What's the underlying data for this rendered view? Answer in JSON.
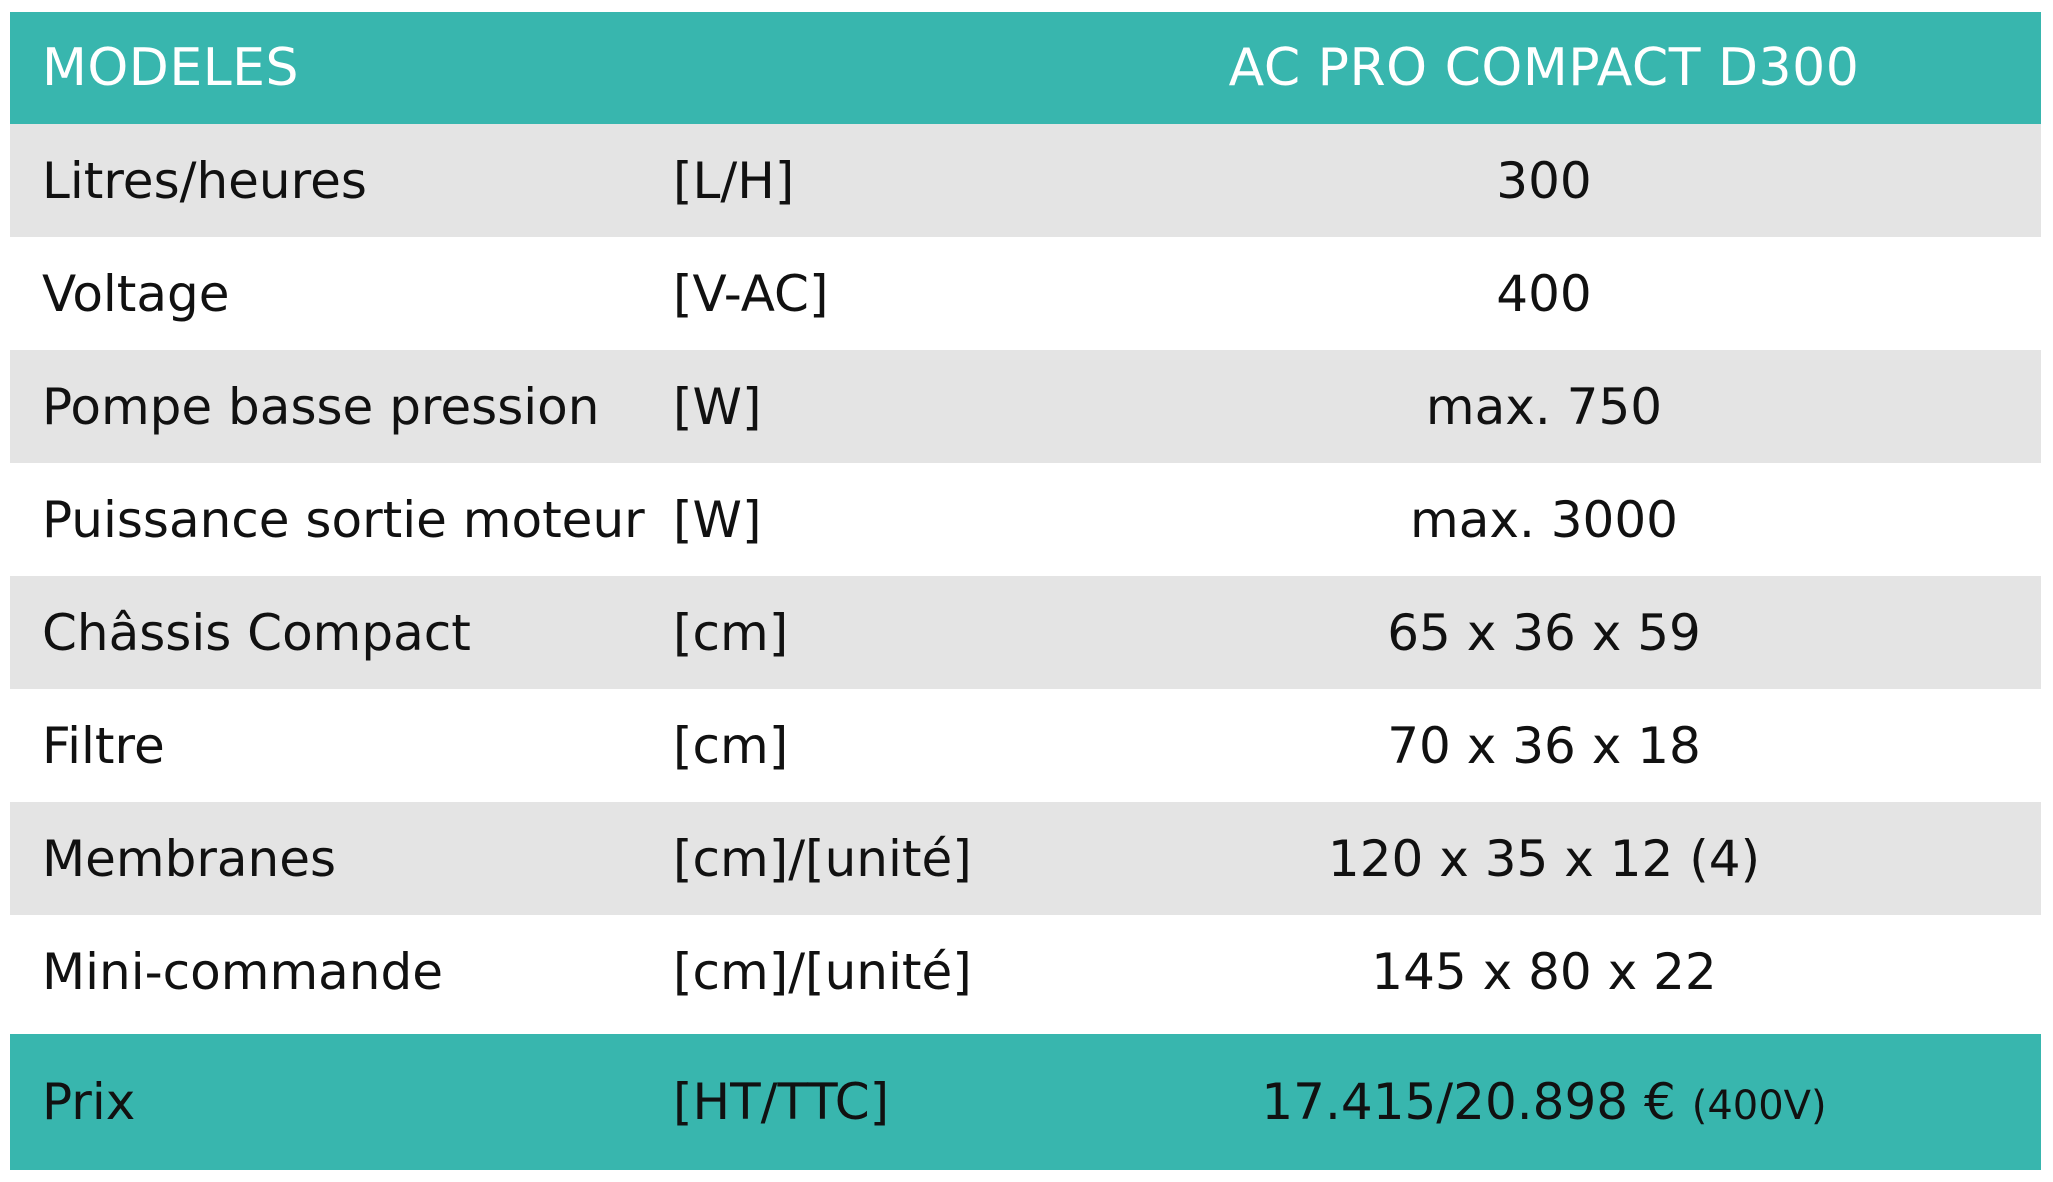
{
  "header": {
    "models_label": "MODELES",
    "model_name": "AC PRO COMPACT D300"
  },
  "rows": [
    {
      "label": "Litres/heures",
      "unit": "[L/H]",
      "value": "300"
    },
    {
      "label": "Voltage",
      "unit": "[V-AC]",
      "value": "400"
    },
    {
      "label": "Pompe basse pression",
      "unit": "[W]",
      "value": "max. 750"
    },
    {
      "label": "Puissance sortie moteur",
      "unit": "[W]",
      "value": "max. 3000"
    },
    {
      "label": "Châssis Compact",
      "unit": "[cm]",
      "value": "65 x 36 x 59"
    },
    {
      "label": "Filtre",
      "unit": "[cm]",
      "value": "70 x 36 x 18"
    },
    {
      "label": "Membranes",
      "unit": "[cm]/[unité]",
      "value": "120 x 35 x 12 (4)"
    },
    {
      "label": "Mini-commande",
      "unit": "[cm]/[unité]",
      "value": "145 x 80 x 22"
    }
  ],
  "footer": {
    "label": "Prix",
    "unit": "[HT/TTC]",
    "value": "17.415/20.898 €",
    "note": "(400V)"
  },
  "colors": {
    "teal": "#38b6ae",
    "grey_row": "#e4e4e4",
    "white_row": "#ffffff"
  }
}
